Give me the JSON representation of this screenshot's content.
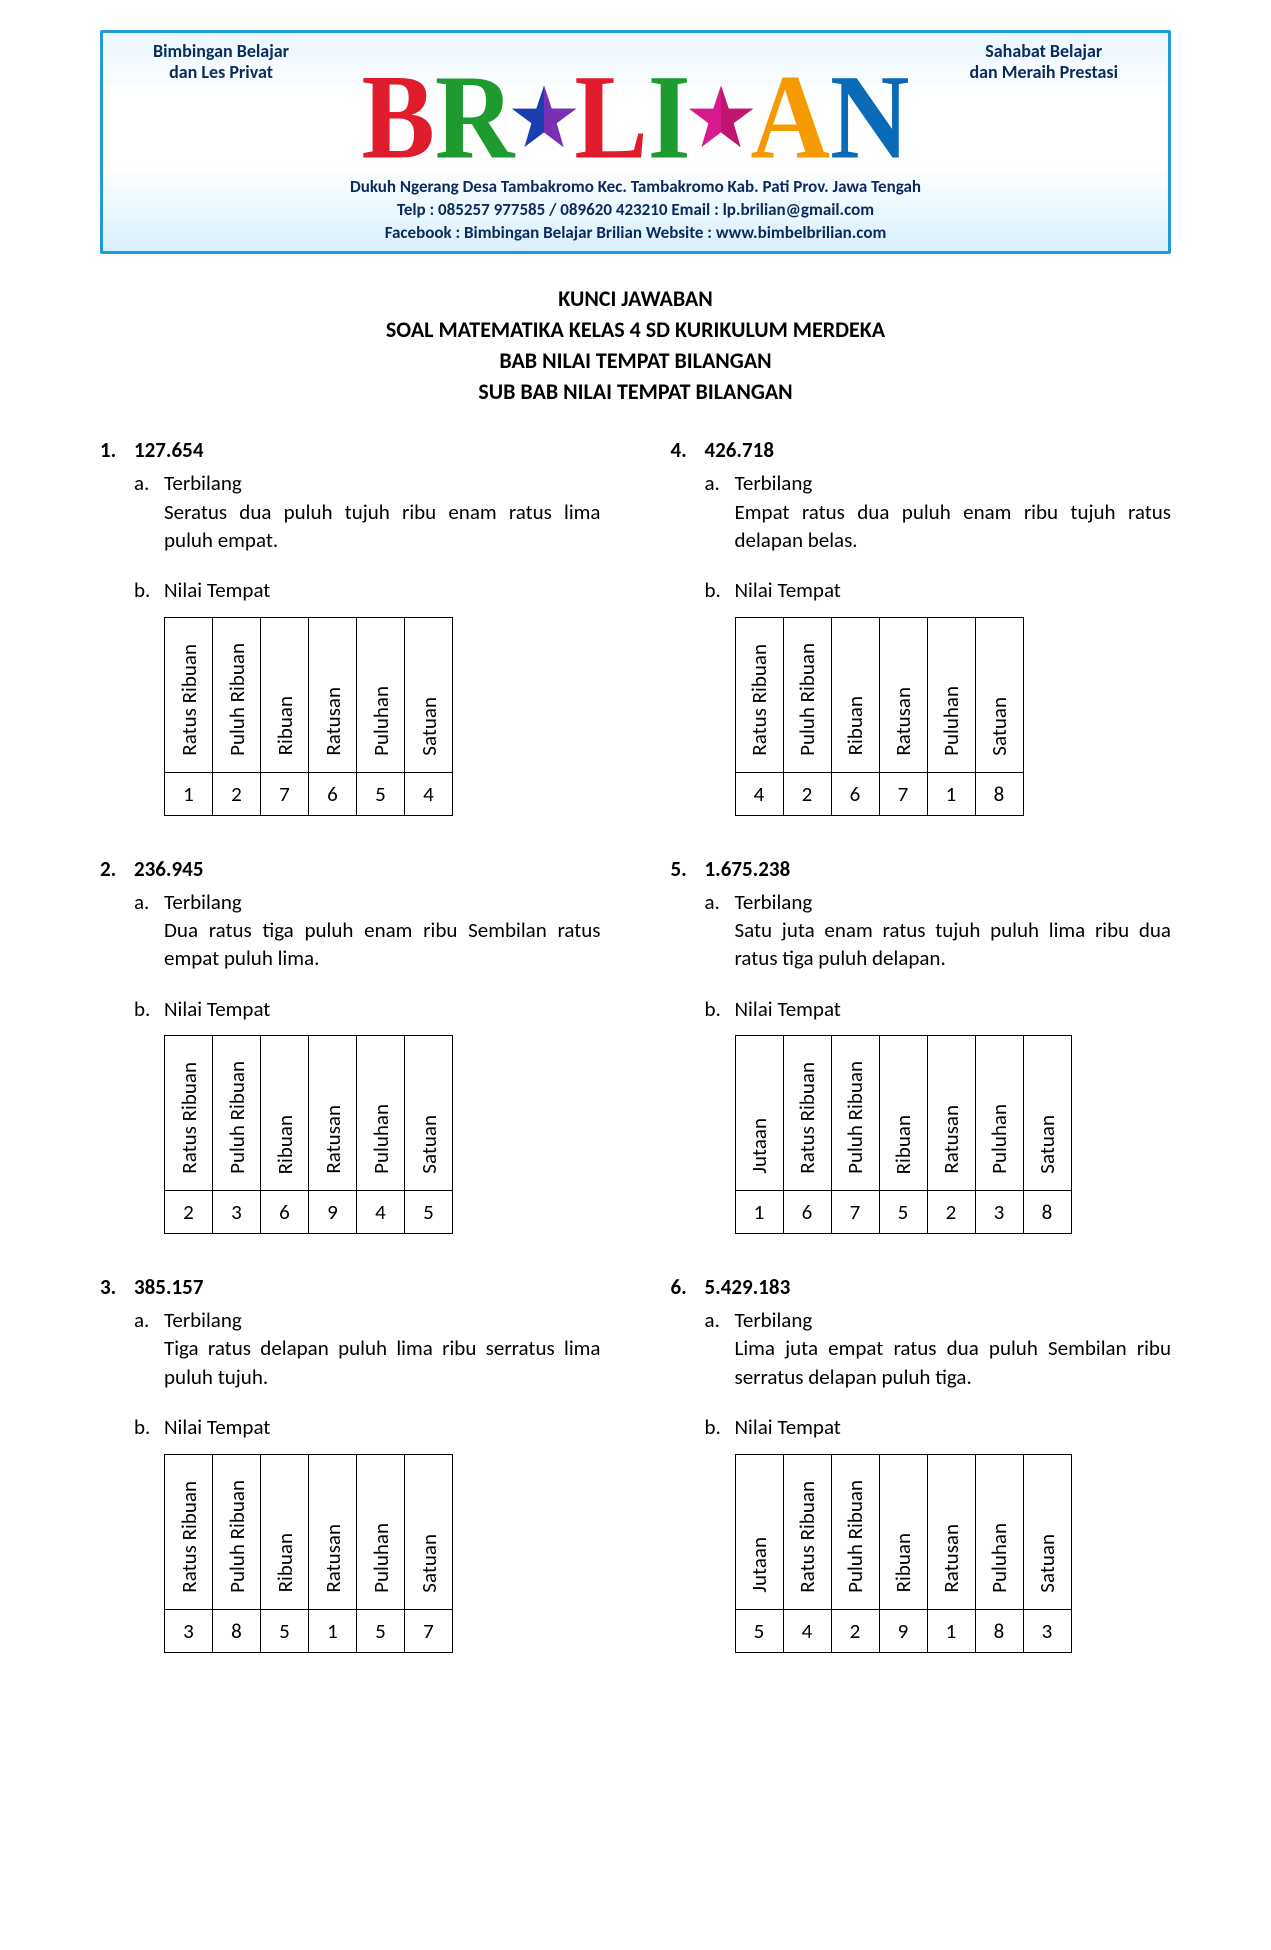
{
  "banner": {
    "left_line1": "Bimbingan Belajar",
    "left_line2": "dan Les Privat",
    "right_line1": "Sahabat Belajar",
    "right_line2": "dan Meraih Prestasi",
    "logo_letters": [
      {
        "char": "B",
        "color": "#e01b2b"
      },
      {
        "char": "R",
        "color": "#1e9b2e"
      },
      {
        "char": "star",
        "color1": "#1a3fb0",
        "color2": "#7b2fb5"
      },
      {
        "char": "L",
        "color": "#e01b2b"
      },
      {
        "char": "I",
        "color": "#1e9b2e"
      },
      {
        "char": "star",
        "color1": "#d81b8c",
        "color2": "#c01570"
      },
      {
        "char": "A",
        "color": "#f59a00"
      },
      {
        "char": "N",
        "color": "#0b6ab5"
      }
    ],
    "addr_line1": "Dukuh Ngerang Desa Tambakromo Kec. Tambakromo Kab. Pati Prov. Jawa Tengah",
    "addr_line2": "Telp : 085257 977585 / 089620 423210    Email : lp.brilian@gmail.com",
    "addr_line3": "Facebook : Bimbingan Belajar Brilian     Website : www.bimbelbrilian.com"
  },
  "title": {
    "l1": "KUNCI JAWABAN",
    "l2": "SOAL MATEMATIKA KELAS 4 SD KURIKULUM MERDEKA",
    "l3": "BAB NILAI TEMPAT BILANGAN",
    "l4": "SUB BAB NILAI TEMPAT BILANGAN"
  },
  "place_headers_6": [
    "Ratus Ribuan",
    "Puluh Ribuan",
    "Ribuan",
    "Ratusan",
    "Puluhan",
    "Satuan"
  ],
  "place_headers_7": [
    "Jutaan",
    "Ratus Ribuan",
    "Puluh Ribuan",
    "Ribuan",
    "Ratusan",
    "Puluhan",
    "Satuan"
  ],
  "labels": {
    "terbilang": "Terbilang",
    "nilai_tempat": "Nilai Tempat"
  },
  "problems": [
    {
      "num": "1.",
      "value": "127.654",
      "terbilang": "Seratus dua puluh tujuh ribu enam ratus lima puluh empat.",
      "cols": 6,
      "digits": [
        "1",
        "2",
        "7",
        "6",
        "5",
        "4"
      ]
    },
    {
      "num": "2.",
      "value": "236.945",
      "terbilang": "Dua ratus tiga puluh enam ribu Sembilan ratus empat puluh lima.",
      "cols": 6,
      "digits": [
        "2",
        "3",
        "6",
        "9",
        "4",
        "5"
      ]
    },
    {
      "num": "3.",
      "value": "385.157",
      "terbilang": "Tiga ratus delapan puluh lima ribu serratus lima puluh tujuh.",
      "cols": 6,
      "digits": [
        "3",
        "8",
        "5",
        "1",
        "5",
        "7"
      ]
    },
    {
      "num": "4.",
      "value": "426.718",
      "terbilang": "Empat ratus dua puluh enam ribu tujuh ratus delapan belas.",
      "cols": 6,
      "digits": [
        "4",
        "2",
        "6",
        "7",
        "1",
        "8"
      ]
    },
    {
      "num": "5.",
      "value": "1.675.238",
      "terbilang": "Satu juta enam ratus tujuh puluh lima ribu dua ratus tiga puluh delapan.",
      "cols": 7,
      "digits": [
        "1",
        "6",
        "7",
        "5",
        "2",
        "3",
        "8"
      ]
    },
    {
      "num": "6.",
      "value": "5.429.183",
      "terbilang": "Lima juta empat ratus dua puluh Sembilan ribu serratus delapan puluh tiga.",
      "cols": 7,
      "digits": [
        "5",
        "4",
        "2",
        "9",
        "1",
        "8",
        "3"
      ]
    }
  ]
}
